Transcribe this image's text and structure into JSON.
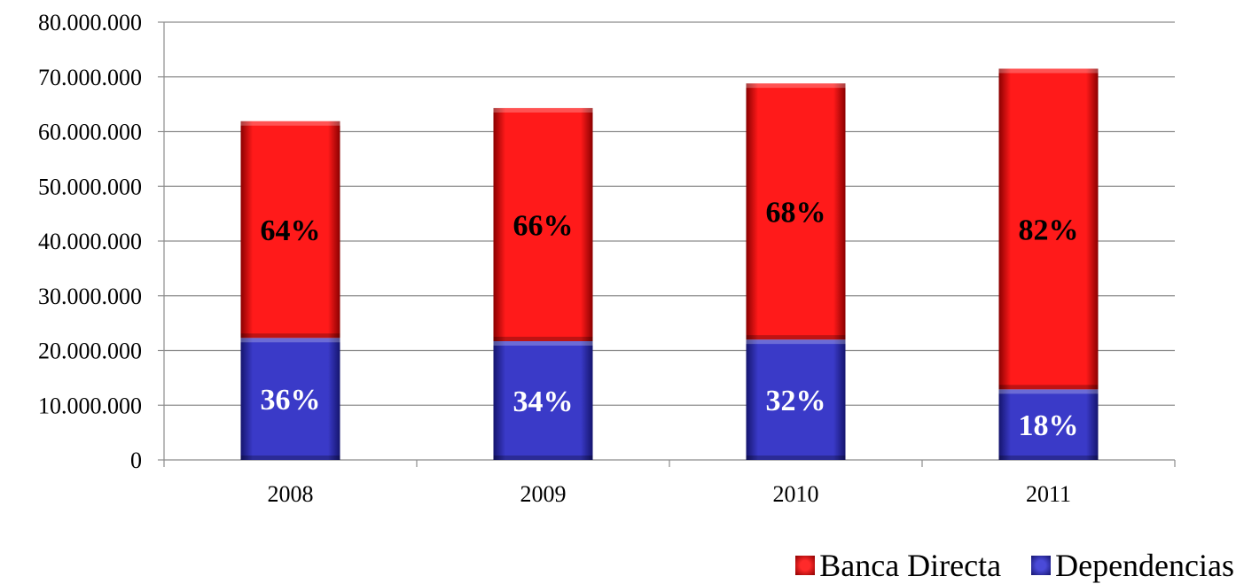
{
  "chart_data": {
    "type": "bar",
    "stacked": true,
    "categories": [
      "2008",
      "2009",
      "2010",
      "2011"
    ],
    "series": [
      {
        "name": "Dependencias",
        "values": [
          22300000,
          21700000,
          22000000,
          12900000
        ],
        "labels": [
          "36%",
          "34%",
          "32%",
          "18%"
        ],
        "color": "#3333bb"
      },
      {
        "name": "Banca Directa",
        "values": [
          39600000,
          42600000,
          46800000,
          58600000
        ],
        "labels": [
          "64%",
          "66%",
          "68%",
          "82%"
        ],
        "color": "#ee1111"
      }
    ],
    "ylim": [
      0,
      80000000
    ],
    "yticks": [
      "0",
      "10.000.000",
      "20.000.000",
      "30.000.000",
      "40.000.000",
      "50.000.000",
      "60.000.000",
      "70.000.000",
      "80.000.000"
    ],
    "grid": true,
    "legend": "bottom-right",
    "xlabel": "",
    "ylabel": "",
    "title": ""
  }
}
